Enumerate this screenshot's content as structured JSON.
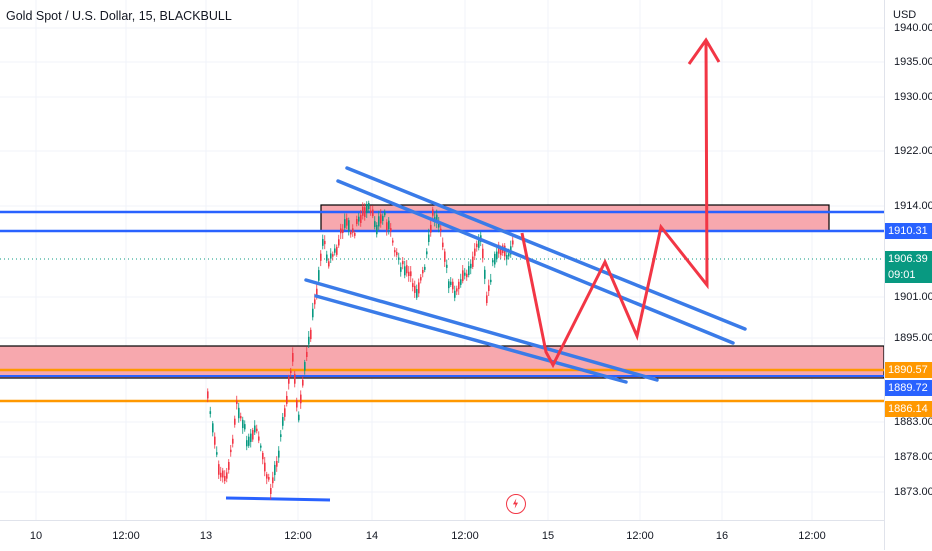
{
  "header": {
    "symbol_title": "Gold Spot / U.S. Dollar, 15, BLACKBULL"
  },
  "price_axis": {
    "currency": "USD",
    "ticks": [
      "1940.00",
      "1935.00",
      "1930.00",
      "1922.00",
      "1914.00",
      "1901.00",
      "1895.00",
      "1883.00",
      "1878.00",
      "1873.00"
    ],
    "labels": {
      "resistance": {
        "text": "1910.31",
        "color": "#2962ff"
      },
      "last_price": {
        "text": "1906.39",
        "color": "#089981"
      },
      "countdown": {
        "text": "09:01",
        "color": "#089981"
      },
      "support_upper": {
        "text": "1890.57",
        "color": "#ff9800"
      },
      "support_mid": {
        "text": "1889.72",
        "color": "#2962ff"
      },
      "support_lower": {
        "text": "1886.14",
        "color": "#ff9800"
      }
    }
  },
  "time_axis": {
    "ticks": [
      "10",
      "12:00",
      "13",
      "12:00",
      "14",
      "12:00",
      "15",
      "12:00",
      "16",
      "12:00"
    ]
  },
  "colors": {
    "zone_fill": "#f7a8ae",
    "blue_line": "#2962ff",
    "channel_line": "#3a7be8",
    "projection": "#f23645",
    "orange_line": "#ff9800",
    "candle_up": "#089981",
    "candle_down": "#f23645"
  },
  "icons": {
    "alert": "bolt-icon"
  }
}
